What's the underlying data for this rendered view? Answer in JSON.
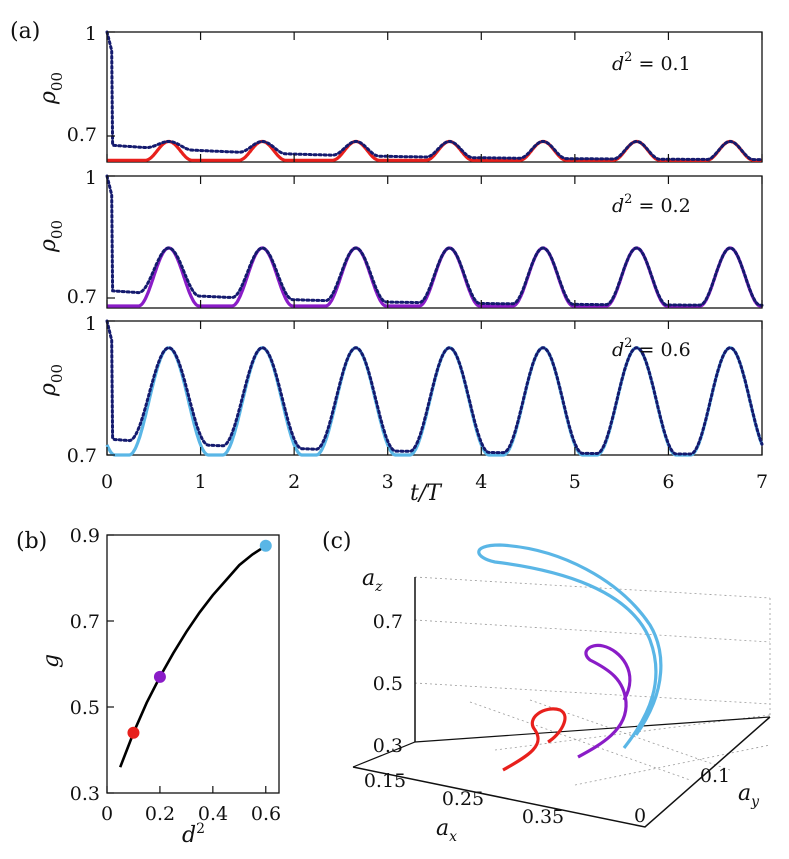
{
  "labels": {
    "panel_a": "(a)",
    "panel_b": "(b)",
    "panel_c": "(c)"
  },
  "colors": {
    "red": "#e8201c",
    "purple": "#8a1cc7",
    "cyan": "#5ab6e6",
    "navy": "#141a6e",
    "black": "#000000"
  },
  "chart_data": [
    {
      "id": "a1",
      "type": "line",
      "ylabel": "ρ00",
      "ylabel_main": "ρ",
      "ylabel_sub": "00",
      "yticks": [
        "1",
        "0.7"
      ],
      "ylim": [
        0.62,
        1.0
      ],
      "xlim": [
        0,
        7
      ],
      "annotation": "d² = 0.1",
      "ann_main": "d",
      "ann_sup": "2",
      "ann_rest": " = 0.1",
      "series": [
        {
          "name": "solid",
          "color": "#e8201c",
          "style": "solid",
          "baseline": 0.625,
          "amplitude": 0.055,
          "fraction": 0.5
        },
        {
          "name": "dotted",
          "color": "#141a6e",
          "style": "dotted",
          "baseline": 0.625,
          "amplitude": 0.055,
          "fraction": 0.5,
          "start": 1.0,
          "decay": 0.15
        }
      ]
    },
    {
      "id": "a2",
      "type": "line",
      "ylabel": "ρ00",
      "ylabel_main": "ρ",
      "ylabel_sub": "00",
      "yticks": [
        "1",
        "0.7"
      ],
      "ylim": [
        0.67,
        1.0
      ],
      "xlim": [
        0,
        7
      ],
      "annotation": "d² = 0.2",
      "ann_main": "d",
      "ann_sup": "2",
      "ann_rest": " = 0.2",
      "series": [
        {
          "name": "solid",
          "color": "#8a1cc7",
          "style": "solid",
          "baseline": 0.675,
          "amplitude": 0.145,
          "fraction": 0.65
        },
        {
          "name": "dotted",
          "color": "#141a6e",
          "style": "dotted",
          "baseline": 0.675,
          "amplitude": 0.145,
          "fraction": 0.65,
          "start": 1.0,
          "decay": 0.18
        }
      ]
    },
    {
      "id": "a3",
      "type": "line",
      "ylabel": "ρ00",
      "ylabel_main": "ρ",
      "ylabel_sub": "00",
      "yticks": [
        "1",
        "0.7"
      ],
      "ylim": [
        0.7,
        1.0
      ],
      "xlim": [
        0,
        7
      ],
      "xticks": [
        "0",
        "1",
        "2",
        "3",
        "4",
        "5",
        "6",
        "7"
      ],
      "xlabel": "t/T",
      "annotation": "d² = 0.6",
      "ann_main": "d",
      "ann_sup": "2",
      "ann_rest": " = 0.6",
      "series": [
        {
          "name": "solid",
          "color": "#5ab6e6",
          "style": "solid",
          "baseline": 0.7,
          "amplitude": 0.24,
          "fraction": 0.85
        },
        {
          "name": "dotted",
          "color": "#141a6e",
          "style": "dotted",
          "baseline": 0.7,
          "amplitude": 0.24,
          "fraction": 0.85,
          "start": 1.0,
          "decay": 0.12
        }
      ]
    },
    {
      "id": "b",
      "type": "line",
      "xlabel": "d²",
      "xlabel_main": "d",
      "xlabel_sup": "2",
      "ylabel": "g",
      "xlim": [
        0,
        0.65
      ],
      "ylim": [
        0.3,
        0.9
      ],
      "xticks": [
        "0",
        "0.2",
        "0.4",
        "0.6"
      ],
      "yticks": [
        "0.3",
        "0.5",
        "0.7",
        "0.9"
      ],
      "curve_x": [
        0.05,
        0.1,
        0.15,
        0.2,
        0.25,
        0.3,
        0.35,
        0.4,
        0.45,
        0.5,
        0.55,
        0.6
      ],
      "curve_y": [
        0.36,
        0.44,
        0.51,
        0.57,
        0.625,
        0.675,
        0.72,
        0.76,
        0.795,
        0.83,
        0.855,
        0.875
      ],
      "points": [
        {
          "x": 0.1,
          "y": 0.44,
          "color": "#e8201c"
        },
        {
          "x": 0.2,
          "y": 0.57,
          "color": "#8a1cc7"
        },
        {
          "x": 0.6,
          "y": 0.875,
          "color": "#5ab6e6"
        }
      ]
    },
    {
      "id": "c",
      "type": "line",
      "xlabel": "ax",
      "ylabel": "ay",
      "zlabel": "az",
      "xlabel_main": "a",
      "xlabel_sub": "x",
      "ylabel_main": "a",
      "ylabel_sub": "y",
      "zlabel_main": "a",
      "zlabel_sub": "z",
      "xticks": [
        "0.15",
        "0.25",
        "0.35"
      ],
      "yticks": [
        "0",
        "0.1"
      ],
      "zticks": [
        "0.3",
        "0.5",
        "0.7"
      ],
      "series": [
        {
          "name": "d2=0.1",
          "color": "#e8201c"
        },
        {
          "name": "d2=0.2",
          "color": "#8a1cc7"
        },
        {
          "name": "d2=0.6",
          "color": "#5ab6e6"
        }
      ]
    }
  ]
}
